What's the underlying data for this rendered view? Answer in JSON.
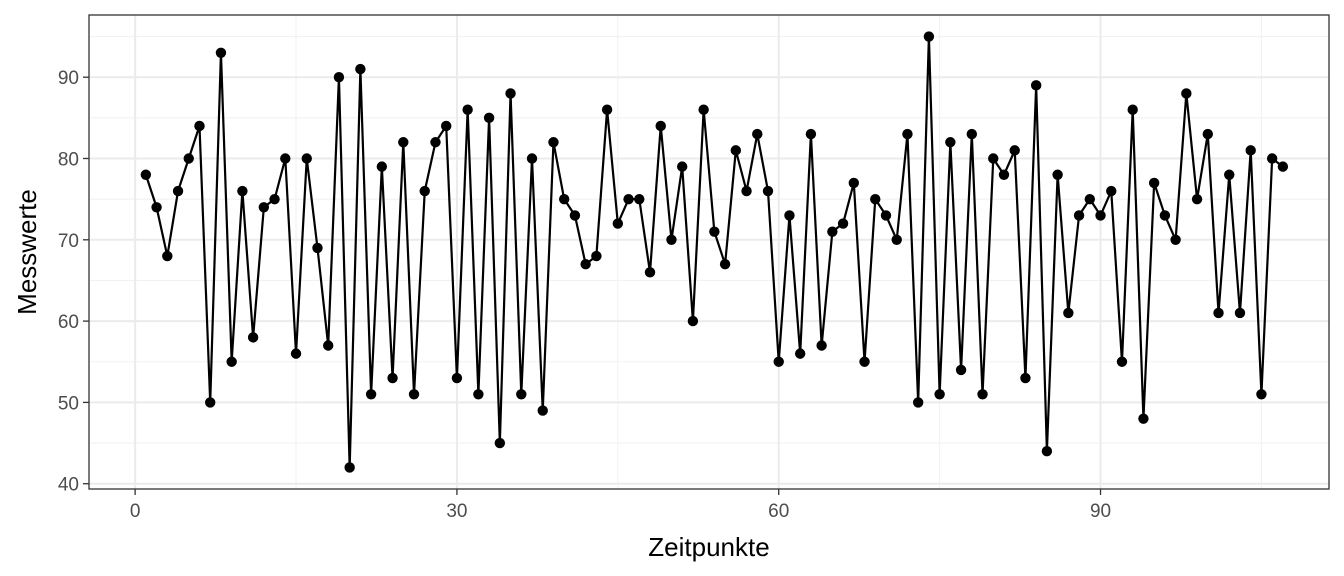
{
  "chart_data": {
    "type": "line",
    "title": "",
    "xlabel": "Zeitpunkte",
    "ylabel": "Messwerte",
    "xlim": [
      -4.3,
      111.3
    ],
    "ylim": [
      39.35,
      97.65
    ],
    "x_ticks": [
      0,
      30,
      60,
      90
    ],
    "y_ticks": [
      40,
      50,
      60,
      70,
      80,
      90
    ],
    "grid": true,
    "legend": "none",
    "colors": {
      "line": "#000000",
      "point": "#000000",
      "grid_major": "#ebebeb",
      "grid_minor": "#f2f2f2",
      "panel_border": "#333333",
      "tick_text": "#4d4d4d"
    },
    "series": [
      {
        "x": [
          1,
          2,
          3,
          4,
          5,
          6,
          7,
          8,
          9,
          10,
          11,
          12,
          13,
          14,
          15,
          16,
          17,
          18,
          19,
          20,
          21,
          22,
          23,
          24,
          25,
          26,
          27,
          28,
          29,
          30,
          31,
          32,
          33,
          34,
          35,
          36,
          37,
          38,
          39,
          40,
          41,
          42,
          43,
          44,
          45,
          46,
          47,
          48,
          49,
          50,
          51,
          52,
          53,
          54,
          55,
          56,
          57,
          58,
          59,
          60,
          61,
          62,
          63,
          64,
          65,
          66,
          67,
          68,
          69,
          70,
          71,
          72,
          73,
          74,
          75,
          76,
          77,
          78,
          79,
          80,
          81,
          82,
          83,
          84,
          85,
          86,
          87,
          88,
          89,
          90,
          91,
          92,
          93,
          94,
          95,
          96,
          97,
          98,
          99,
          100,
          101,
          102,
          103,
          104,
          105,
          106,
          107
        ],
        "values": [
          78,
          74,
          68,
          76,
          80,
          84,
          50,
          93,
          55,
          76,
          58,
          74,
          75,
          80,
          56,
          80,
          69,
          57,
          90,
          42,
          91,
          51,
          79,
          53,
          82,
          51,
          76,
          82,
          84,
          53,
          86,
          51,
          85,
          45,
          88,
          51,
          80,
          49,
          82,
          75,
          73,
          67,
          68,
          86,
          72,
          75,
          75,
          66,
          84,
          70,
          79,
          60,
          86,
          71,
          67,
          81,
          76,
          83,
          76,
          55,
          73,
          56,
          83,
          57,
          71,
          72,
          77,
          55,
          75,
          73,
          70,
          83,
          50,
          95,
          51,
          82,
          54,
          83,
          51,
          80,
          78,
          81,
          53,
          89,
          44,
          78,
          61,
          73,
          75,
          73,
          76,
          55,
          86,
          48,
          77,
          73,
          70,
          88,
          75,
          83,
          61,
          78,
          61,
          81,
          51,
          80,
          79
        ]
      }
    ]
  }
}
